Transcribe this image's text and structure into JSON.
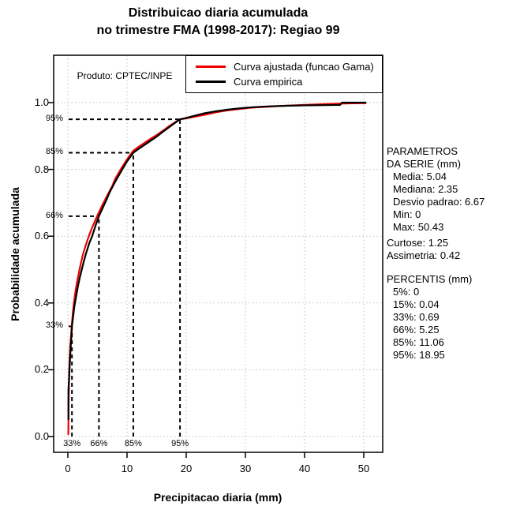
{
  "title": {
    "line1": "Distribuicao diaria acumulada",
    "line2": "no trimestre FMA (1998-2017): Regiao 99"
  },
  "product_label": "Produto: CPTEC/INPE",
  "legend": {
    "items": [
      {
        "label": "Curva ajustada (funcao Gama)",
        "color": "#ee0000"
      },
      {
        "label": "Curva empirica",
        "color": "#000000"
      }
    ]
  },
  "axes": {
    "x_title": "Precipitacao diaria (mm)",
    "y_title": "Probabilidade acumulada"
  },
  "side_panel": {
    "groups": [
      {
        "lines": [
          {
            "text": "PARAMETROS",
            "indent": 0
          },
          {
            "text": "DA SERIE (mm)",
            "indent": 0
          },
          {
            "text": "Media: 5.04",
            "indent": 1
          },
          {
            "text": "Mediana: 2.35",
            "indent": 1
          },
          {
            "text": "Desvio padrao: 6.67",
            "indent": 1
          },
          {
            "text": "Min: 0",
            "indent": 1
          },
          {
            "text": "Max: 50.43",
            "indent": 1
          }
        ]
      },
      {
        "lines": [
          {
            "text": "Curtose: 1.25",
            "indent": 0
          },
          {
            "text": "Assimetria: 0.42",
            "indent": 0
          }
        ]
      },
      {
        "lines": [
          {
            "text": "PERCENTIS (mm)",
            "indent": 0
          },
          {
            "text": "5%: 0",
            "indent": 1
          },
          {
            "text": "15%: 0.04",
            "indent": 1
          },
          {
            "text": "33%: 0.69",
            "indent": 1
          },
          {
            "text": "66%: 5.25",
            "indent": 1
          },
          {
            "text": "85%: 11.06",
            "indent": 1
          },
          {
            "text": "95%: 18.95",
            "indent": 1
          }
        ]
      }
    ]
  },
  "chart_data": {
    "type": "line",
    "title": "Distribuicao diaria acumulada no trimestre FMA (1998-2017): Regiao 99",
    "xlabel": "Precipitacao diaria (mm)",
    "ylabel": "Probabilidade acumulada",
    "xlim": [
      0,
      50.43
    ],
    "ylim": [
      0,
      1
    ],
    "x_ticks": [
      0,
      10,
      20,
      30,
      40,
      50
    ],
    "y_ticks": [
      0.0,
      0.2,
      0.4,
      0.6,
      0.8,
      1.0
    ],
    "grid": true,
    "grid_color": "#c2c2c2",
    "legend_position": "top-right",
    "annotation": "Produto: CPTEC/INPE",
    "series": [
      {
        "name": "Curva ajustada (funcao Gama)",
        "color": "#ee0000",
        "points": [
          [
            0.08,
            0.005
          ],
          [
            0.1,
            0.05
          ],
          [
            0.13,
            0.1
          ],
          [
            0.17,
            0.15
          ],
          [
            0.22,
            0.19
          ],
          [
            0.3,
            0.235
          ],
          [
            0.4,
            0.27
          ],
          [
            0.55,
            0.305
          ],
          [
            0.69,
            0.34
          ],
          [
            0.9,
            0.38
          ],
          [
            1.2,
            0.425
          ],
          [
            1.5,
            0.458
          ],
          [
            2.0,
            0.503
          ],
          [
            2.5,
            0.542
          ],
          [
            3.0,
            0.572
          ],
          [
            3.6,
            0.603
          ],
          [
            4.2,
            0.63
          ],
          [
            5.0,
            0.662
          ],
          [
            5.8,
            0.692
          ],
          [
            6.6,
            0.72
          ],
          [
            7.5,
            0.75
          ],
          [
            8.0,
            0.772
          ],
          [
            9.0,
            0.802
          ],
          [
            10.0,
            0.83
          ],
          [
            11.06,
            0.856
          ],
          [
            12.0,
            0.868
          ],
          [
            13.0,
            0.88
          ],
          [
            14.0,
            0.892
          ],
          [
            15.0,
            0.903
          ],
          [
            16.0,
            0.915
          ],
          [
            17.0,
            0.928
          ],
          [
            18.0,
            0.94
          ],
          [
            18.95,
            0.95
          ],
          [
            20.0,
            0.953
          ],
          [
            21.5,
            0.958
          ],
          [
            23.0,
            0.963
          ],
          [
            25.0,
            0.971
          ],
          [
            27.0,
            0.977
          ],
          [
            29.0,
            0.981
          ],
          [
            31.0,
            0.985
          ],
          [
            33.0,
            0.987
          ],
          [
            35.0,
            0.989
          ],
          [
            37.0,
            0.991
          ],
          [
            39.0,
            0.9925
          ],
          [
            41.0,
            0.994
          ],
          [
            43.5,
            0.9955
          ],
          [
            46.0,
            0.997
          ],
          [
            48.0,
            0.998
          ],
          [
            50.4,
            0.9985
          ]
        ]
      },
      {
        "name": "Curva empirica",
        "color": "#000000",
        "points": [
          [
            0.1,
            0.05
          ],
          [
            0.1,
            0.14
          ],
          [
            0.2,
            0.17
          ],
          [
            0.3,
            0.21
          ],
          [
            0.45,
            0.26
          ],
          [
            0.6,
            0.3
          ],
          [
            0.69,
            0.33
          ],
          [
            0.9,
            0.36
          ],
          [
            1.1,
            0.39
          ],
          [
            1.4,
            0.42
          ],
          [
            1.7,
            0.45
          ],
          [
            2.0,
            0.475
          ],
          [
            2.35,
            0.5
          ],
          [
            2.7,
            0.525
          ],
          [
            3.1,
            0.55
          ],
          [
            3.6,
            0.578
          ],
          [
            4.1,
            0.6
          ],
          [
            4.7,
            0.633
          ],
          [
            5.25,
            0.66
          ],
          [
            5.9,
            0.685
          ],
          [
            6.5,
            0.708
          ],
          [
            7.1,
            0.733
          ],
          [
            8.0,
            0.763
          ],
          [
            9.0,
            0.794
          ],
          [
            10.0,
            0.824
          ],
          [
            11.06,
            0.85
          ],
          [
            12.0,
            0.862
          ],
          [
            13.0,
            0.874
          ],
          [
            14.0,
            0.886
          ],
          [
            15.0,
            0.898
          ],
          [
            16.0,
            0.912
          ],
          [
            17.0,
            0.925
          ],
          [
            18.0,
            0.938
          ],
          [
            18.95,
            0.95
          ],
          [
            20.0,
            0.954
          ],
          [
            21.5,
            0.961
          ],
          [
            23.0,
            0.968
          ],
          [
            25.0,
            0.974
          ],
          [
            27.0,
            0.979
          ],
          [
            29.0,
            0.983
          ],
          [
            31.0,
            0.986
          ],
          [
            33.0,
            0.988
          ],
          [
            35.0,
            0.9895
          ],
          [
            37.0,
            0.9905
          ],
          [
            39.0,
            0.9915
          ],
          [
            41.0,
            0.992
          ],
          [
            43.5,
            0.9925
          ],
          [
            46.0,
            0.993
          ],
          [
            46.3,
            1.0
          ],
          [
            50.43,
            1.0
          ]
        ]
      }
    ],
    "percentile_guides": [
      {
        "label": "33%",
        "prob": 0.33,
        "value": 0.69
      },
      {
        "label": "66%",
        "prob": 0.66,
        "value": 5.25
      },
      {
        "label": "85%",
        "prob": 0.85,
        "value": 11.06
      },
      {
        "label": "95%",
        "prob": 0.95,
        "value": 18.95
      }
    ]
  }
}
